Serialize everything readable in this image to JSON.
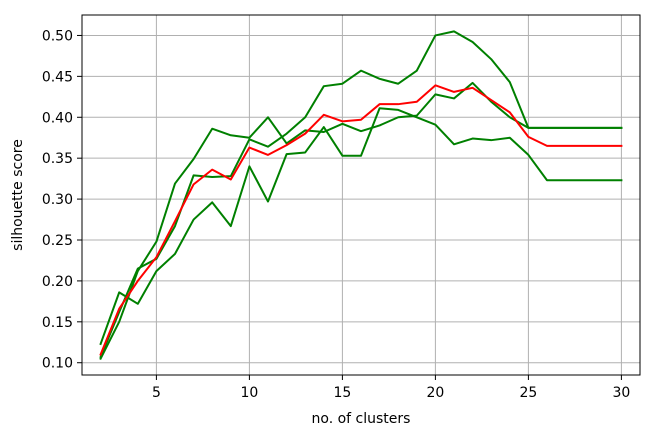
{
  "chart_data": {
    "type": "line",
    "title": "",
    "xlabel": "no. of clusters",
    "ylabel": "silhouette score",
    "xlim": [
      1,
      31
    ],
    "ylim": [
      0.085,
      0.525
    ],
    "xticks": [
      5,
      10,
      15,
      20,
      25,
      30
    ],
    "yticks": [
      0.1,
      0.15,
      0.2,
      0.25,
      0.3,
      0.35,
      0.4,
      0.45,
      0.5
    ],
    "x": [
      2,
      3,
      4,
      5,
      6,
      7,
      8,
      9,
      10,
      11,
      12,
      13,
      14,
      15,
      16,
      17,
      18,
      19,
      20,
      21,
      22,
      23,
      24,
      25,
      26,
      27,
      28,
      29,
      30
    ],
    "grid": true,
    "legend": "none",
    "series": [
      {
        "color": "#008000",
        "values": [
          0.123,
          0.186,
          0.172,
          0.212,
          0.233,
          0.275,
          0.296,
          0.267,
          0.34,
          0.297,
          0.355,
          0.357,
          0.388,
          0.353,
          0.353,
          0.411,
          0.409,
          0.4,
          0.391,
          0.367,
          0.374,
          0.372,
          0.375,
          0.354,
          0.323,
          0.323,
          0.323,
          0.323,
          0.323
        ]
      },
      {
        "color": "#008000",
        "values": [
          0.105,
          0.15,
          0.212,
          0.248,
          0.319,
          0.349,
          0.386,
          0.378,
          0.375,
          0.4,
          0.368,
          0.384,
          0.382,
          0.392,
          0.383,
          0.39,
          0.4,
          0.402,
          0.428,
          0.423,
          0.442,
          0.419,
          0.4,
          0.387,
          0.387,
          0.387,
          0.387,
          0.387,
          0.387
        ]
      },
      {
        "color": "#008000",
        "values": [
          0.107,
          0.162,
          0.215,
          0.227,
          0.267,
          0.329,
          0.327,
          0.328,
          0.373,
          0.364,
          0.38,
          0.4,
          0.438,
          0.441,
          0.457,
          0.447,
          0.441,
          0.457,
          0.5,
          0.505,
          0.492,
          0.471,
          0.443,
          0.387,
          0.387,
          0.387,
          0.387,
          0.387,
          0.387
        ]
      },
      {
        "color": "#ff0000",
        "values": [
          0.11,
          0.166,
          0.2,
          0.229,
          0.273,
          0.318,
          0.336,
          0.324,
          0.363,
          0.354,
          0.366,
          0.38,
          0.403,
          0.395,
          0.397,
          0.416,
          0.416,
          0.419,
          0.439,
          0.431,
          0.436,
          0.421,
          0.406,
          0.376,
          0.365,
          0.365,
          0.365,
          0.365,
          0.365
        ]
      }
    ]
  }
}
